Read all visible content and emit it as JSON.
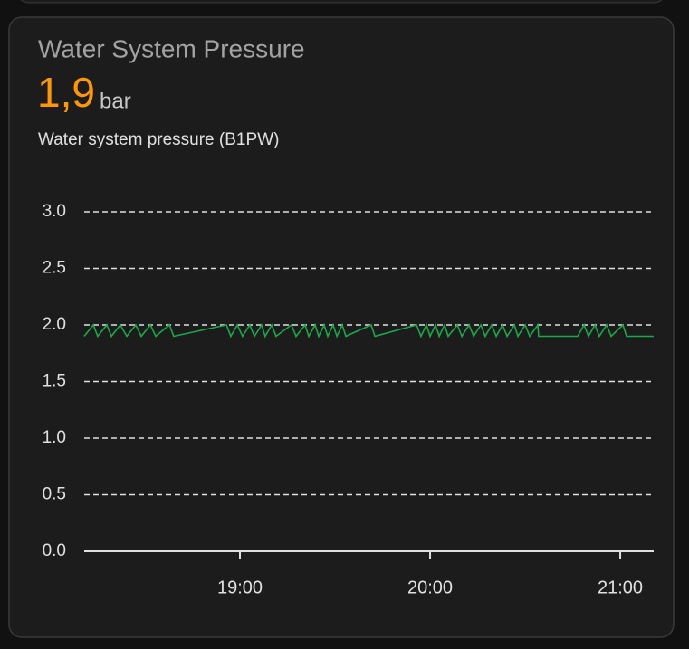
{
  "header": {
    "title": "Water System Pressure",
    "value": "1,9",
    "unit": "bar",
    "subtitle": "Water system pressure (B1PW)"
  },
  "chart_data": {
    "type": "line",
    "color": "#1aa84a",
    "grid": true,
    "x": [
      18.181,
      18.229,
      18.252,
      18.3,
      18.324,
      18.371,
      18.405,
      18.452,
      18.481,
      18.529,
      18.557,
      18.629,
      18.652,
      18.929,
      18.952,
      18.986,
      19.014,
      19.052,
      19.076,
      19.114,
      19.133,
      19.167,
      19.19,
      19.271,
      19.295,
      19.343,
      19.362,
      19.395,
      19.414,
      19.443,
      19.462,
      19.49,
      19.51,
      19.538,
      19.557,
      19.69,
      19.71,
      19.929,
      19.952,
      19.981,
      20.0,
      20.029,
      20.048,
      20.076,
      20.095,
      20.143,
      20.167,
      20.205,
      20.229,
      20.267,
      20.29,
      20.324,
      20.348,
      20.381,
      20.405,
      20.443,
      20.462,
      20.5,
      20.524,
      20.567,
      20.571,
      20.776,
      20.81,
      20.833,
      20.867,
      20.89,
      20.929,
      20.952,
      21.014,
      21.033,
      21.176
    ],
    "values": [
      1.9,
      2.0,
      1.9,
      2.0,
      1.9,
      2.0,
      1.9,
      2.0,
      1.9,
      2.0,
      1.9,
      2.0,
      1.9,
      2.0,
      1.9,
      2.0,
      1.9,
      2.0,
      1.9,
      2.0,
      1.9,
      2.0,
      1.9,
      2.0,
      1.9,
      2.0,
      1.9,
      2.0,
      1.9,
      2.0,
      1.9,
      2.0,
      1.9,
      2.0,
      1.9,
      2.0,
      1.9,
      2.0,
      1.9,
      2.0,
      1.9,
      2.0,
      1.9,
      2.0,
      1.9,
      2.0,
      1.9,
      2.0,
      1.9,
      2.0,
      1.9,
      2.0,
      1.9,
      2.0,
      1.9,
      2.0,
      1.9,
      2.0,
      1.9,
      2.0,
      1.9,
      1.9,
      2.0,
      1.9,
      2.0,
      1.9,
      2.0,
      1.9,
      2.0,
      1.9,
      1.9
    ],
    "xlim": [
      18.181,
      21.176
    ],
    "xticks": [
      {
        "value": 19,
        "label": "19:00"
      },
      {
        "value": 20,
        "label": "20:00"
      },
      {
        "value": 21,
        "label": "21:00"
      }
    ],
    "ylim": [
      0,
      3
    ],
    "yticks": [
      {
        "value": 0,
        "label": "0.0"
      },
      {
        "value": 0.5,
        "label": "0.5"
      },
      {
        "value": 1,
        "label": "1.0"
      },
      {
        "value": 1.5,
        "label": "1.5"
      },
      {
        "value": 2,
        "label": "2.0"
      },
      {
        "value": 2.5,
        "label": "2.5"
      },
      {
        "value": 3,
        "label": "3.0"
      }
    ]
  }
}
